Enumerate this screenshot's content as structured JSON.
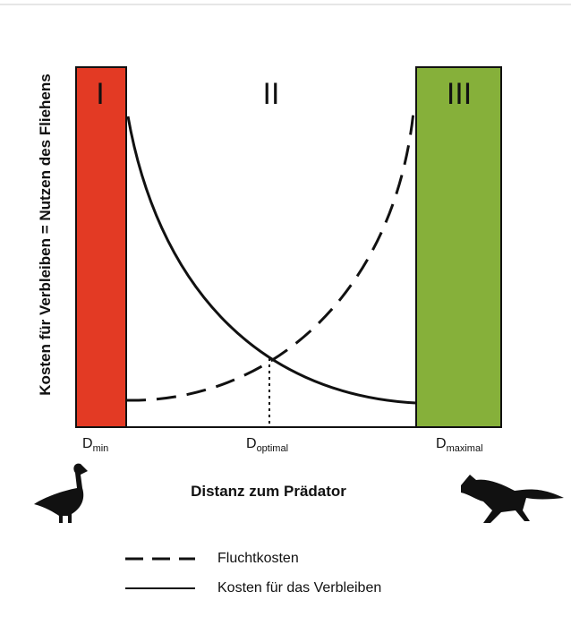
{
  "regions": [
    {
      "label": "I"
    },
    {
      "label": "II"
    },
    {
      "label": "III"
    }
  ],
  "y_axis_label": "Kosten für Verbleiben = Nutzen des Fliehens",
  "distance_labels": [
    {
      "base": "D",
      "sub": "min"
    },
    {
      "base": "D",
      "sub": "optimal"
    },
    {
      "base": "D",
      "sub": "maximal"
    }
  ],
  "x_axis_title": "Distanz zum Prädator",
  "legend": [
    {
      "label": "Fluchtkosten"
    },
    {
      "label": "Kosten für das Verbleiben"
    }
  ]
}
